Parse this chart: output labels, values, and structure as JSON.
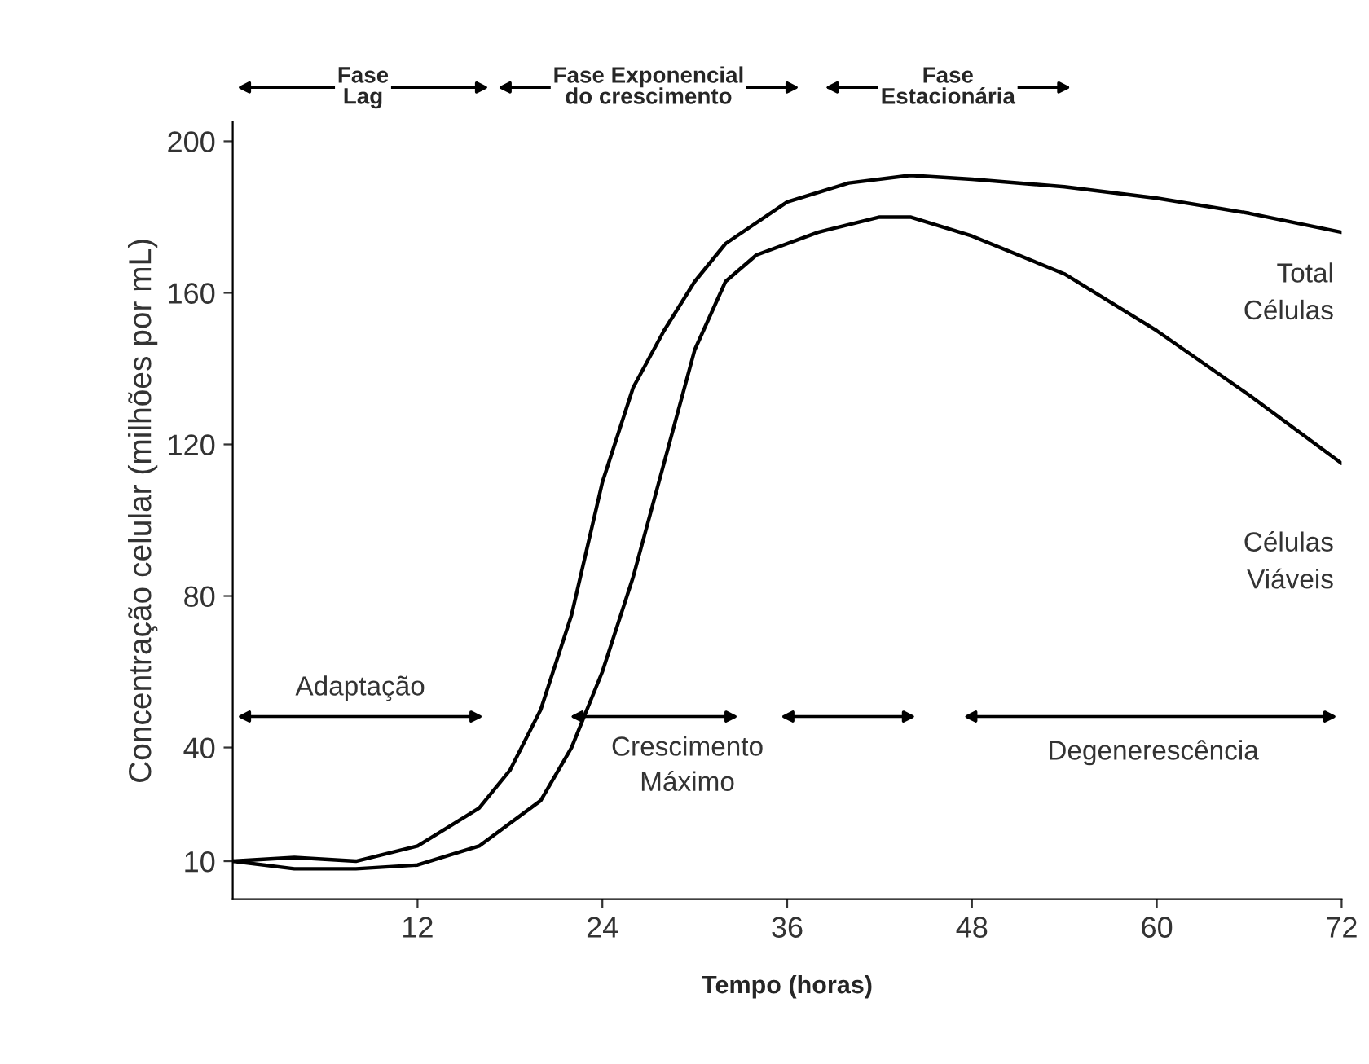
{
  "chart_data": {
    "type": "line",
    "xlabel": "Tempo (horas)",
    "ylabel": "Concentração celular (milhões por mL)",
    "xlim": [
      0,
      72
    ],
    "xticks": [
      12,
      24,
      36,
      48,
      60,
      72
    ],
    "ylim": [
      0,
      205
    ],
    "yticks": [
      10,
      40,
      80,
      120,
      160,
      200
    ],
    "grid": false,
    "legend": false,
    "marker": "none",
    "line_style": "solid",
    "series": [
      {
        "name": "Total Células",
        "color": "#000000",
        "x": [
          0,
          4,
          8,
          12,
          16,
          18,
          20,
          22,
          24,
          26,
          28,
          30,
          32,
          36,
          40,
          44,
          48,
          54,
          60,
          66,
          72
        ],
        "values": [
          10,
          11,
          10,
          14,
          24,
          34,
          50,
          75,
          110,
          135,
          150,
          163,
          173,
          184,
          189,
          191,
          190,
          188,
          185,
          181,
          176
        ]
      },
      {
        "name": "Células Viáveis",
        "color": "#000000",
        "x": [
          0,
          4,
          8,
          12,
          16,
          20,
          22,
          24,
          26,
          28,
          30,
          32,
          34,
          38,
          42,
          44,
          48,
          54,
          60,
          66,
          72
        ],
        "values": [
          10,
          8,
          8,
          9,
          14,
          26,
          40,
          60,
          85,
          115,
          145,
          163,
          170,
          176,
          180,
          180,
          175,
          165,
          150,
          133,
          115
        ]
      }
    ],
    "annotations": [
      "Fase\nLag",
      "Fase Exponencial\ndo crescimento",
      "Fase\nEstacionária",
      "Adaptação",
      "Crescimento\nMáximo",
      "Degenerescência"
    ]
  }
}
